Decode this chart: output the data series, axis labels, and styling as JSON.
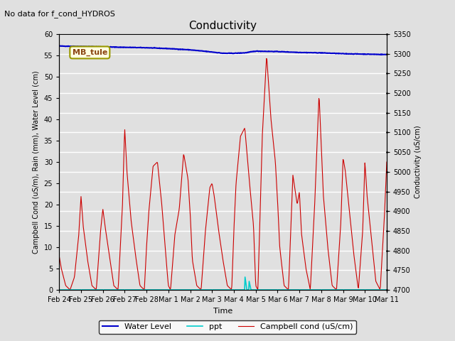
{
  "title": "Conductivity",
  "top_left_text": "No data for f_cond_HYDROS",
  "station_label": "MB_tule",
  "ylabel_left": "Campbell Cond (uS/m), Rain (mm), Water Level (cm)",
  "ylabel_right": "Conductivity (uS/cm)",
  "xlabel": "Time",
  "ylim_left": [
    0,
    60
  ],
  "ylim_right": [
    4700,
    5350
  ],
  "background_color": "#e0e0e0",
  "xtick_labels": [
    "Feb 24",
    "Feb 25",
    "Feb 26",
    "Feb 27",
    "Feb 28",
    "Mar 1",
    "Mar 2",
    "Mar 3",
    "Mar 4",
    "Mar 5",
    "Mar 6",
    "Mar 7",
    "Mar 8",
    "Mar 9",
    "Mar 10",
    "Mar 11"
  ],
  "water_level_color": "#0000cc",
  "ppt_color": "#00cccc",
  "campbell_color": "#cc0000",
  "legend_labels": [
    "Water Level",
    "ppt",
    "Campbell cond (uS/cm)"
  ],
  "right_ticks": [
    4700,
    4750,
    4800,
    4850,
    4900,
    4950,
    5000,
    5050,
    5100,
    5150,
    5200,
    5250,
    5300,
    5350
  ],
  "left_ticks": [
    0,
    5,
    10,
    15,
    20,
    25,
    30,
    35,
    40,
    45,
    50,
    55,
    60
  ]
}
